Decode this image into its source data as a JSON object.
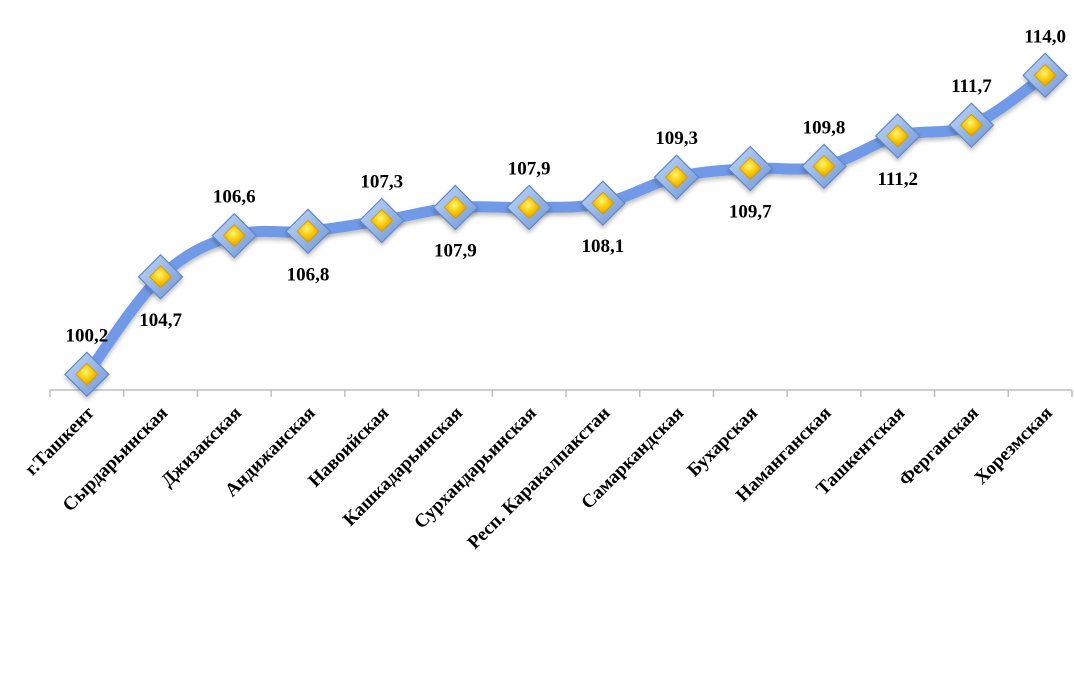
{
  "chart_data": {
    "type": "line",
    "title": "",
    "xlabel": "",
    "ylabel": "",
    "ylim": [
      99.8,
      114.8
    ],
    "grid": false,
    "legend": "none",
    "categories": [
      "г.Ташкент",
      "Сырдарьинская",
      "Джизакская",
      "Андижанская",
      "Навоийская",
      "Кашкадарьинская",
      "Сурхандарьинская",
      "Респ. Каракалпакстан",
      "Самаркандская",
      "Бухарская",
      "Наманганская",
      "Ташкентская",
      "Ферганская",
      "Хорезмская"
    ],
    "values": [
      100.2,
      104.7,
      106.6,
      106.8,
      107.3,
      107.9,
      107.9,
      108.1,
      109.3,
      109.7,
      109.8,
      111.2,
      111.7,
      114.0
    ],
    "value_labels": [
      "100,2",
      "104,7",
      "106,6",
      "106,8",
      "107,3",
      "107,9",
      "107,9",
      "108,1",
      "109,3",
      "109,7",
      "109,8",
      "111,2",
      "111,7",
      "114,0"
    ],
    "label_positions": [
      "above",
      "below",
      "above",
      "below",
      "above",
      "below",
      "above",
      "below",
      "above",
      "below",
      "above",
      "below",
      "above",
      "above"
    ],
    "colors": {
      "line": "#6f9ae8",
      "marker_outer": "#8fb3e6",
      "marker_inner": "#f5c400",
      "axis": "#bfbfbf"
    }
  }
}
